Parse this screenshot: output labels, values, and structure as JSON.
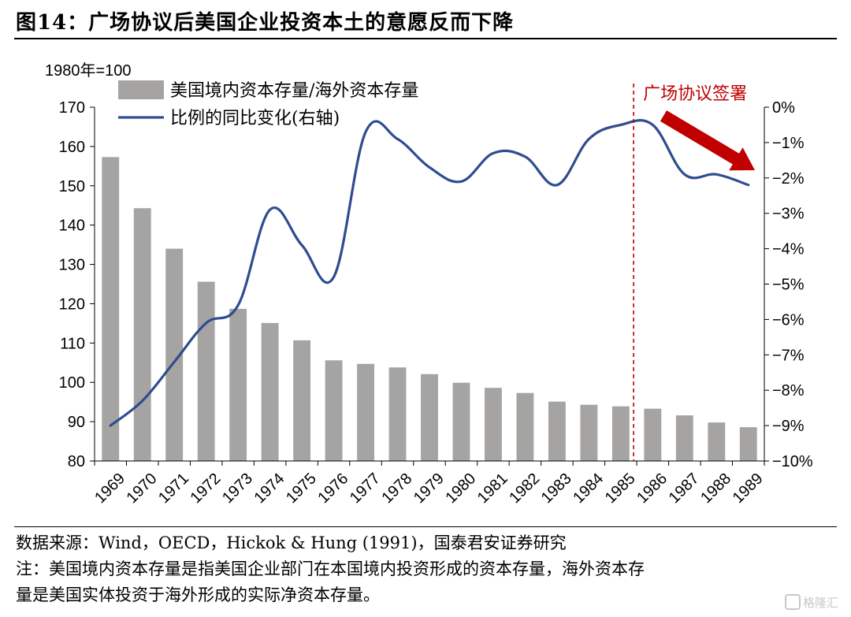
{
  "title": "图14：广场协议后美国企业投资本土的意愿反而下降",
  "notes": {
    "source": "数据来源：Wind，OECD，Hickok & Hung (1991)，国泰君安证券研究",
    "note_line1": "注：美国境内资本存量是指美国企业部门在本国境内投资形成的资本存量，海外资本存",
    "note_line2": "量是美国实体投资于海外形成的实际净资本存量。"
  },
  "watermark": "格隆汇",
  "chart_data": {
    "type": "bar+line",
    "unit_label": "1980年=100",
    "categories": [
      "1969",
      "1970",
      "1971",
      "1972",
      "1973",
      "1974",
      "1975",
      "1976",
      "1977",
      "1978",
      "1979",
      "1980",
      "1981",
      "1982",
      "1983",
      "1984",
      "1985",
      "1986",
      "1987",
      "1988",
      "1989"
    ],
    "series": [
      {
        "name": "美国境内资本存量/海外资本存量",
        "type": "bar",
        "axis": "left",
        "color": "#a6a3a3",
        "values": [
          157.3,
          144.3,
          134.0,
          125.6,
          118.7,
          115.1,
          110.7,
          105.6,
          104.7,
          103.8,
          102.1,
          99.9,
          98.6,
          97.3,
          95.1,
          94.3,
          93.9,
          93.3,
          91.6,
          89.8,
          88.6
        ]
      },
      {
        "name": "比例的同比变化(右轴)",
        "type": "line",
        "axis": "right",
        "color": "#2e4d8f",
        "values": [
          -9.0,
          -8.3,
          -7.2,
          -6.1,
          -5.6,
          -2.9,
          -3.9,
          -4.8,
          -0.7,
          -0.9,
          -1.7,
          -2.1,
          -1.3,
          -1.4,
          -2.2,
          -0.9,
          -0.5,
          -0.5,
          -1.9,
          -1.9,
          -2.2
        ]
      }
    ],
    "y_left": {
      "min": 80,
      "max": 170,
      "ticks": [
        80,
        90,
        100,
        110,
        120,
        130,
        140,
        150,
        160,
        170
      ]
    },
    "y_right": {
      "min": -10,
      "max": 0,
      "ticks": [
        0,
        -1,
        -2,
        -3,
        -4,
        -5,
        -6,
        -7,
        -8,
        -9,
        -10
      ],
      "tick_labels": [
        "0%",
        "−1%",
        "−2%",
        "−3%",
        "−4%",
        "−5%",
        "−6%",
        "−7%",
        "−8%",
        "−9%",
        "−10%"
      ]
    },
    "annotation": {
      "text": "广场协议签署",
      "at_category": "1985",
      "line_color": "#c00000",
      "text_color": "#c00000"
    },
    "arrow_color": "#c00000",
    "legend_position": "top-left",
    "grid": false
  }
}
